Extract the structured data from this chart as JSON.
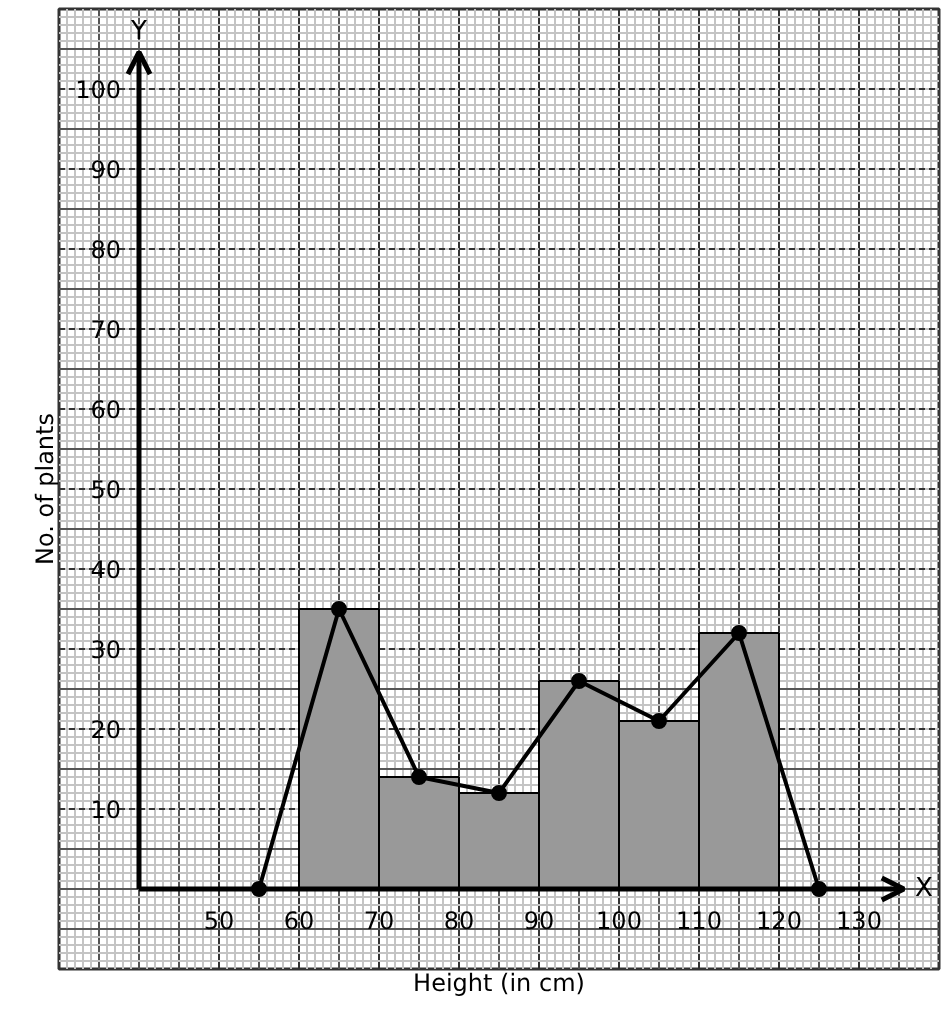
{
  "chart_data": {
    "type": "histogram",
    "xlabel": "Height (in cm)",
    "ylabel": "No. of plants",
    "annotations": [
      "X",
      "Y"
    ],
    "series": [
      {
        "type": "histogram",
        "bins": [
          60,
          70,
          80,
          90,
          100,
          110,
          120
        ],
        "values": [
          35,
          14,
          12,
          26,
          21,
          32
        ],
        "color": "#999999"
      },
      {
        "type": "line",
        "x": [
          55,
          65,
          75,
          85,
          95,
          105,
          115,
          125
        ],
        "values": [
          0,
          35,
          14,
          12,
          26,
          21,
          32,
          0
        ],
        "color": "#000000"
      }
    ],
    "marker": "circle",
    "line_style": "solid",
    "xlim": [
      30,
      140
    ],
    "ylim": [
      -10,
      110
    ],
    "xticks": [
      50,
      60,
      70,
      80,
      90,
      100,
      110,
      120,
      130
    ],
    "yticks": [
      10,
      20,
      30,
      40,
      50,
      60,
      70,
      80,
      90,
      100
    ],
    "grid": true
  }
}
